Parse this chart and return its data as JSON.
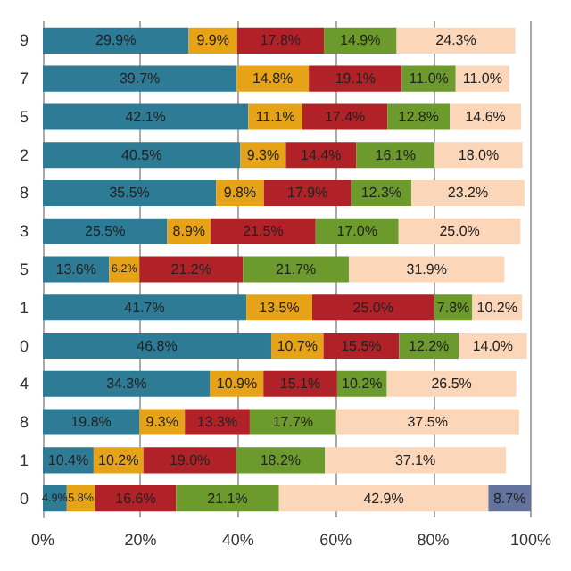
{
  "chart_data": {
    "type": "bar",
    "orientation": "horizontal",
    "stacked": true,
    "categories": [
      "9",
      "7",
      "5",
      "2",
      "8",
      "3",
      "5",
      "1",
      "0",
      "4",
      "8",
      "1",
      "0"
    ],
    "series": [
      {
        "color": "#2e7b96",
        "values": [
          29.9,
          39.7,
          42.1,
          40.5,
          35.5,
          25.5,
          13.6,
          41.7,
          46.8,
          34.3,
          19.8,
          10.4,
          4.9
        ],
        "value_labels": [
          "29.9%",
          "39.7%",
          "42.1%",
          "40.5%",
          "35.5%",
          "25.5%",
          "13.6%",
          "41.7%",
          "46.8%",
          "34.3%",
          "19.8%",
          "10.4%",
          "4.9%"
        ]
      },
      {
        "color": "#e6a318",
        "values": [
          9.9,
          14.8,
          11.1,
          9.3,
          9.8,
          8.9,
          6.2,
          13.5,
          10.7,
          10.9,
          9.3,
          10.2,
          5.8
        ],
        "value_labels": [
          "9.9%",
          "14.8%",
          "11.1%",
          "9.3%",
          "9.8%",
          "8.9%",
          "6.2%",
          "13.5%",
          "10.7%",
          "10.9%",
          "9.3%",
          "10.2%",
          "5.8%"
        ]
      },
      {
        "color": "#b02228",
        "values": [
          17.8,
          19.1,
          17.4,
          14.4,
          17.9,
          21.5,
          21.2,
          25.0,
          15.5,
          15.1,
          13.3,
          19.0,
          16.6
        ],
        "value_labels": [
          "17.8%",
          "19.1%",
          "17.4%",
          "14.4%",
          "17.9%",
          "21.5%",
          "21.2%",
          "25.0%",
          "15.5%",
          "15.1%",
          "13.3%",
          "19.0%",
          "16.6%"
        ]
      },
      {
        "color": "#6d9a2c",
        "values": [
          14.9,
          11.0,
          12.8,
          16.1,
          12.3,
          17.0,
          21.7,
          7.8,
          12.2,
          10.2,
          17.7,
          18.2,
          21.1
        ],
        "value_labels": [
          "14.9%",
          "11.0%",
          "12.8%",
          "16.1%",
          "12.3%",
          "17.0%",
          "21.7%",
          "7.8%",
          "12.2%",
          "10.2%",
          "17.7%",
          "18.2%",
          "21.1%"
        ]
      },
      {
        "color": "#fbd6b8",
        "values": [
          24.3,
          11.0,
          14.6,
          18.0,
          23.2,
          25.0,
          31.9,
          10.2,
          14.0,
          26.5,
          37.5,
          37.1,
          42.9
        ],
        "value_labels": [
          "24.3%",
          "11.0%",
          "14.6%",
          "18.0%",
          "23.2%",
          "25.0%",
          "31.9%",
          "10.2%",
          "14.0%",
          "26.5%",
          "37.5%",
          "37.1%",
          "42.9%"
        ]
      },
      {
        "color": "#64729e",
        "values": [
          null,
          null,
          null,
          null,
          null,
          null,
          null,
          null,
          null,
          null,
          null,
          null,
          8.7
        ],
        "value_labels": [
          null,
          null,
          null,
          null,
          null,
          null,
          null,
          null,
          null,
          null,
          null,
          null,
          "8.7%"
        ]
      }
    ],
    "xlim": [
      0,
      100
    ],
    "xticks": [
      {
        "value": 0,
        "label": "0%"
      },
      {
        "value": 20,
        "label": "20%"
      },
      {
        "value": 40,
        "label": "40%"
      },
      {
        "value": 60,
        "label": "60%"
      },
      {
        "value": 80,
        "label": "80%"
      },
      {
        "value": 100,
        "label": "100%"
      }
    ],
    "grid": "x"
  }
}
